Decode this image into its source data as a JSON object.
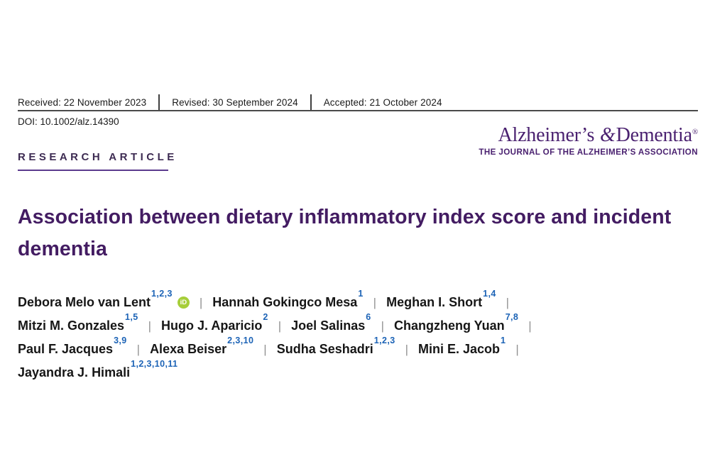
{
  "colors": {
    "brand_purple": "#4a2170",
    "title_purple": "#431c62",
    "kicker_purple": "#3d2b52",
    "underline_purple": "#5b3a8e",
    "superscript_blue": "#1c63b6",
    "orcid_green": "#a6ce39"
  },
  "header": {
    "received": "Received: 22 November 2023",
    "revised": "Revised: 30 September 2024",
    "accepted": "Accepted: 21 October 2024",
    "doi": "DOI: 10.1002/alz.14390"
  },
  "journal": {
    "name_word1": "Alzheimer’s",
    "ampersand": "&",
    "name_word2": "Dementia",
    "registered_mark": "®",
    "tagline": "THE JOURNAL OF THE ALZHEIMER’S ASSOCIATION"
  },
  "article": {
    "kicker": "RESEARCH ARTICLE",
    "title": "Association between dietary inflammatory index score and incident dementia"
  },
  "authors": {
    "separator": "|",
    "orcid_glyph": "iD",
    "lines": [
      [
        {
          "name": "Debora Melo van Lent",
          "sup": "1,2,3",
          "orcid": true
        },
        {
          "name": "Hannah Gokingco Mesa",
          "sup": "1"
        },
        {
          "name": "Meghan I. Short",
          "sup": "1,4"
        }
      ],
      [
        {
          "name": "Mitzi M. Gonzales",
          "sup": "1,5"
        },
        {
          "name": "Hugo J. Aparicio",
          "sup": "2"
        },
        {
          "name": "Joel Salinas",
          "sup": "6"
        },
        {
          "name": "Changzheng Yuan",
          "sup": "7,8"
        }
      ],
      [
        {
          "name": "Paul F. Jacques",
          "sup": "3,9"
        },
        {
          "name": "Alexa Beiser",
          "sup": "2,3,10"
        },
        {
          "name": "Sudha Seshadri",
          "sup": "1,2,3"
        },
        {
          "name": "Mini E. Jacob",
          "sup": "1"
        }
      ],
      [
        {
          "name": "Jayandra J. Himali",
          "sup": "1,2,3,10,11"
        }
      ]
    ]
  }
}
